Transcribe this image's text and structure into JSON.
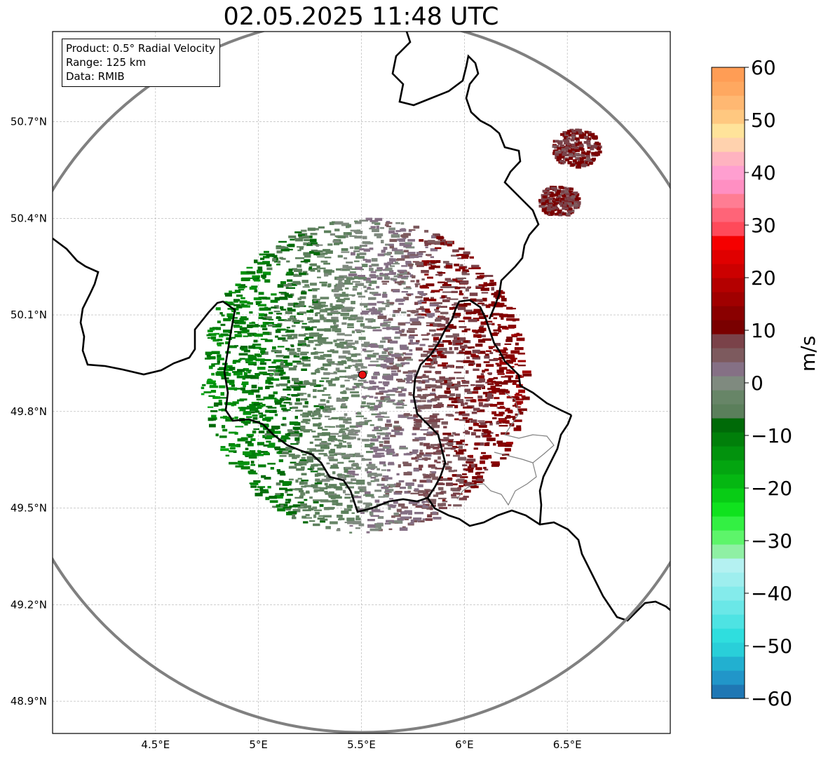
{
  "title": "02.05.2025 11:48 UTC",
  "info_box": {
    "product": "Product: 0.5° Radial Velocity",
    "range": "Range: 125 km",
    "data": "Data: RMIB"
  },
  "map": {
    "lon_range": [
      4.0,
      7.0
    ],
    "lat_range": [
      48.8,
      50.98
    ],
    "lon_ticks": [
      {
        "value": 4.5,
        "label": "4.5°E"
      },
      {
        "value": 5.0,
        "label": "5°E"
      },
      {
        "value": 5.5,
        "label": "5.5°E"
      },
      {
        "value": 6.0,
        "label": "6°E"
      },
      {
        "value": 6.5,
        "label": "6.5°E"
      }
    ],
    "lat_ticks": [
      {
        "value": 50.7,
        "label": "50.7°N"
      },
      {
        "value": 50.4,
        "label": "50.4°N"
      },
      {
        "value": 50.1,
        "label": "50.1°N"
      },
      {
        "value": 49.8,
        "label": "49.8°N"
      },
      {
        "value": 49.5,
        "label": "49.5°N"
      },
      {
        "value": 49.2,
        "label": "49.2°N"
      },
      {
        "value": 48.9,
        "label": "48.9°N"
      }
    ],
    "radar_site": {
      "lon": 5.505,
      "lat": 49.914
    },
    "range_ring_km": 125,
    "gridlines": true
  },
  "colorbar": {
    "unit": "m/s",
    "min": -60,
    "max": 60,
    "ticks": [
      {
        "value": 60,
        "label": "60"
      },
      {
        "value": 50,
        "label": "50"
      },
      {
        "value": 40,
        "label": "40"
      },
      {
        "value": 30,
        "label": "30"
      },
      {
        "value": 20,
        "label": "20"
      },
      {
        "value": 10,
        "label": "10"
      },
      {
        "value": 0,
        "label": "0"
      },
      {
        "value": -10,
        "label": "−10"
      },
      {
        "value": -20,
        "label": "−20"
      },
      {
        "value": -30,
        "label": "−30"
      },
      {
        "value": -40,
        "label": "−40"
      },
      {
        "value": -50,
        "label": "−50"
      },
      {
        "value": -60,
        "label": "−60"
      }
    ],
    "colors": [
      "#1f77b4",
      "#2196c9",
      "#22b0d0",
      "#29cfd9",
      "#2fdede",
      "#4ee3e3",
      "#6ae7e7",
      "#84ebeb",
      "#9eeeee",
      "#b4f1f1",
      "#8ff0a4",
      "#5df56a",
      "#33f043",
      "#10e21e",
      "#08cc15",
      "#05b712",
      "#03a510",
      "#02920d",
      "#017f0a",
      "#006a08",
      "#5b7f5b",
      "#678567",
      "#7f8a7f",
      "#857085",
      "#7d5a5e",
      "#7a4249",
      "#7a0000",
      "#8a0000",
      "#a00000",
      "#b40000",
      "#cc0000",
      "#e00000",
      "#f50000",
      "#ff4a5a",
      "#ff6478",
      "#ff7d93",
      "#ff8fc2",
      "#ff9fd0",
      "#ffb3c0",
      "#ffd2ae",
      "#ffe39a",
      "#ffc880",
      "#ffb872",
      "#ffa860",
      "#ff9d55"
    ]
  }
}
